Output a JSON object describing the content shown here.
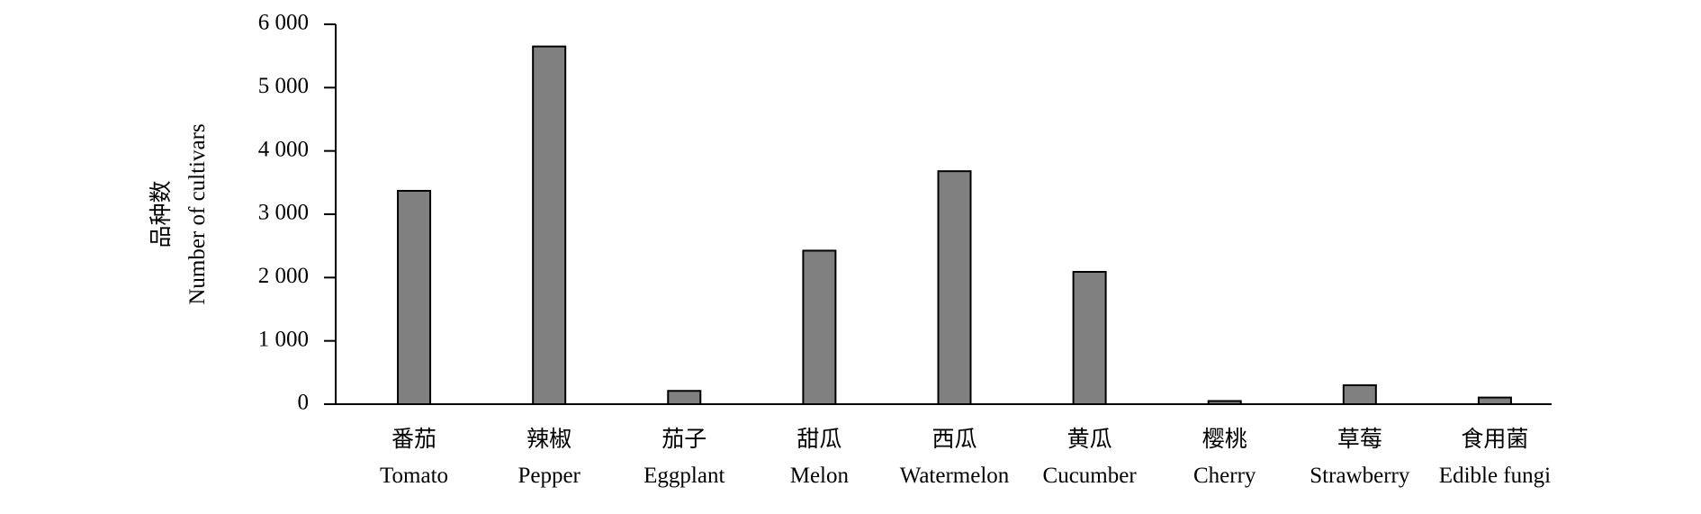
{
  "chart_data": {
    "type": "bar",
    "y_label": "品种数\nNumber of cultivars",
    "categories": [
      "番茄\nTomato",
      "辣椒\nPepper",
      "茄子\nEggplant",
      "甜瓜\nMelon",
      "西瓜\nWatermelon",
      "黄瓜\nCucumber",
      "樱桃\nCherry",
      "草莓\nStrawberry",
      "食用菌\nEdible fungi"
    ],
    "values": [
      3370,
      5650,
      210,
      2425,
      3680,
      2090,
      50,
      300,
      105
    ],
    "color": "#808080",
    "ylim": [
      0,
      6000
    ],
    "yticks": [
      0,
      {
        "value": 1000,
        "label": "1 000"
      },
      {
        "value": 2000,
        "label": "2 000"
      },
      {
        "value": 3000,
        "label": "3 000"
      },
      {
        "value": 4000,
        "label": "4 000"
      },
      {
        "value": 5000,
        "label": "5 000"
      },
      {
        "value": 6000,
        "label": "6 000"
      }
    ],
    "grid": false
  }
}
